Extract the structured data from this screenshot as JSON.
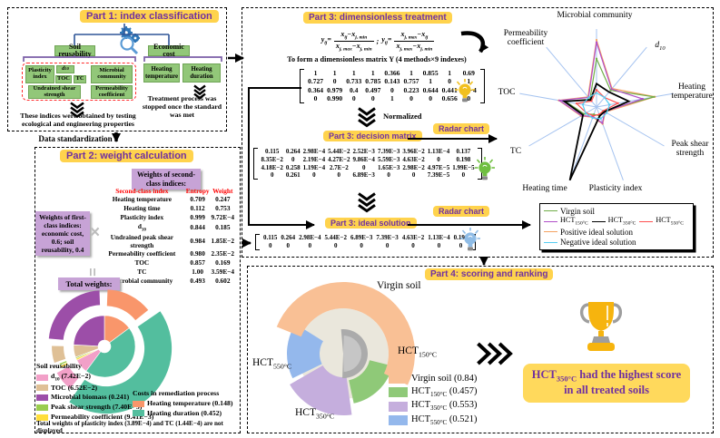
{
  "part1": {
    "title": "Part 1: index classification",
    "branch_left": "Soil reusability",
    "branch_right": "Economic cost",
    "indices": {
      "plasticity_index": "Plasticity index",
      "d10": "d[10]",
      "toc": "TOC",
      "tc": "TC",
      "microbial_community": "Microbial community",
      "undrained_shear_strength": "Undrained shear strength",
      "permeability_coefficient": "Permeability coefficient"
    },
    "cost_indices": {
      "heating_temperature": "Heating temperature",
      "heating_duration": "Heating duration"
    },
    "note_indices": "These indices were obtained by testing ecological and engineering properties",
    "note_cost": "Treatment process was stopped once the standard was met",
    "data_standardization": "Data standardization"
  },
  "part2": {
    "title": "Part 2: weight calculation",
    "second_class_label": "Weights of second-class indices:",
    "first_class_label": "Weights of first-class indices: economic cost, 0.6; soil reusability, 0.4",
    "times_symbol": "×",
    "equals_symbol": "=",
    "total_weights_label": "Total weights:",
    "table": {
      "headers": [
        "Second-class index",
        "Entropy",
        "Weight"
      ],
      "rows": [
        [
          "Heating temperature",
          "0.709",
          "0.247"
        ],
        [
          "Heating time",
          "0.112",
          "0.753"
        ],
        [
          "Plasticity index",
          "0.999",
          "9.72E−4"
        ],
        [
          "d[10]",
          "0.844",
          "0.185"
        ],
        [
          "Undrained peak shear strength",
          "0.984",
          "1.85E−2"
        ],
        [
          "Permeability coefficient",
          "0.980",
          "2.35E−2"
        ],
        [
          "TOC",
          "0.857",
          "0.169"
        ],
        [
          "TC",
          "1.00",
          "3.59E−4"
        ],
        [
          "Microbial community",
          "0.493",
          "0.602"
        ]
      ]
    },
    "legend": {
      "group1_title": "Soil reusability",
      "group1_items": [
        "d[10] (7.42E−2)",
        "TOC (6.52E−2)",
        "Microbial biomass (0.241)",
        "Peak shear strength (7.40E−3)",
        "Permeability coefficient (9.41E−3)"
      ],
      "group1_color_index": [
        2,
        5,
        6,
        4,
        3
      ],
      "group2_title": "Costs in remediation process",
      "group2_items": [
        "Heating temperature (0.148)",
        "Heating duration (0.452)"
      ],
      "group2_color_index": [
        0,
        1
      ],
      "note": "Total weights of plasticity index (3.89E−4) and TC (1.44E−4) are not displayed"
    }
  },
  "part3": {
    "title_dimensionless": "Part 3: dimensionless treatment",
    "title_decision": "Part 3: decision matrix",
    "title_ideal": "Part 3: ideal solution",
    "radar_button": "Radar chart",
    "formula": {
      "lhs": "y[ij]=",
      "frac1_num": "x[ij]−x[j, min]",
      "frac1_den": "x[j, max]−x[j, min]",
      "separator": ";",
      "lhs2": "y[ij]=",
      "frac2_num": "x[j, max]−x[ij]",
      "frac2_den": "x[j, max]−x[j, min]"
    },
    "matrix_caption": "To form  a dimensionless matrix Y (4 methods×9 indexes)",
    "normalized_label": "Normalized",
    "dimensionless_matrix": [
      [
        "1",
        "1",
        "1",
        "1",
        "0.366",
        "1",
        "0.855",
        "1",
        "0.69"
      ],
      [
        "0.727",
        "0",
        "0.733",
        "0.785",
        "0.143",
        "0.757",
        "1",
        "0",
        "1"
      ],
      [
        "0.364",
        "0.979",
        "0.4",
        "0.497",
        "0",
        "0.223",
        "0.644",
        "0.441",
        "1E−4"
      ],
      [
        "0",
        "0.990",
        "0",
        "0",
        "1",
        "0",
        "0",
        "0.656",
        "0"
      ]
    ],
    "decision_matrix": [
      [
        "0.115",
        "0.264",
        "2.98E−4",
        "5.44E−2",
        "2.52E−3",
        "7.39E−3",
        "3.96E−2",
        "1.13E−4",
        "0.137"
      ],
      [
        "8.35E−2",
        "0",
        "2.19E−4",
        "4.27E−2",
        "9.86E−4",
        "5.59E−3",
        "4.63E−2",
        "0",
        "0.198"
      ],
      [
        "4.18E−2",
        "0.258",
        "1.19E−4",
        "2.7E−2",
        "0",
        "1.65E−3",
        "2.98E−2",
        "4.97E−5",
        "1.99E−5"
      ],
      [
        "0",
        "0.261",
        "0",
        "0",
        "6.89E−3",
        "0",
        "0",
        "7.39E−5",
        "0"
      ]
    ],
    "ideal_matrix": [
      [
        "0.115",
        "0.264",
        "2.98E−4",
        "5.44E−2",
        "6.89E−3",
        "7.39E−3",
        "4.63E−2",
        "1.13E−4",
        "0.198"
      ],
      [
        "0",
        "0",
        "0",
        "0",
        "0",
        "0",
        "0",
        "0",
        "0"
      ]
    ],
    "icons": {
      "bulb1": "#F2C01E",
      "bulb2": "#70BF41",
      "bulb3": "#8FBCE6"
    }
  },
  "part4": {
    "title": "Part 4: scoring and ranking",
    "conclusion": "HCT[350°C] had the highest score in all treated soils"
  },
  "chart_data": [
    {
      "type": "pie",
      "variant": "double-ring donut of total weights",
      "title": "Total weights:",
      "segments": [
        {
          "label": "Heating temperature",
          "value": 0.148,
          "color": "#F9966B",
          "group": "Costs in remediation process"
        },
        {
          "label": "Heating duration",
          "value": 0.452,
          "color": "#53BE9E",
          "group": "Costs in remediation process"
        },
        {
          "label": "d10",
          "value": 0.0742,
          "color": "#F2A0C8",
          "group": "Soil reusability"
        },
        {
          "label": "Permeability coefficient",
          "value": 0.00941,
          "color": "#FFDE3B",
          "group": "Soil reusability"
        },
        {
          "label": "Peak shear strength",
          "value": 0.0074,
          "color": "#9ACD4E",
          "group": "Soil reusability"
        },
        {
          "label": "TOC",
          "value": 0.0652,
          "color": "#DFC096",
          "group": "Soil reusability"
        },
        {
          "label": "Microbial biomass",
          "value": 0.241,
          "color": "#9C4EA8",
          "group": "Soil reusability"
        }
      ],
      "hidden_segments_note": "Total weights of plasticity index (3.89E−4) and TC (1.44E−4) are not displayed"
    },
    {
      "type": "radar",
      "axes": [
        "Microbial community",
        "d[10]",
        "Heating temperature",
        "Peak shear strength",
        "Plasticity index",
        "Heating time",
        "TC",
        "TOC",
        "Permeability coefficient"
      ],
      "range": [
        0,
        1
      ],
      "series": [
        {
          "name": "Virgin soil",
          "color": "#70AD47",
          "values": [
            0.62,
            0.28,
            0.75,
            0.1,
            0.12,
            0.1,
            0.18,
            0.4,
            0.13
          ]
        },
        {
          "name": "HCT[150°C]",
          "color": "#B14FC9",
          "values": [
            0.83,
            0.3,
            0.6,
            0.12,
            0.22,
            0.13,
            0.22,
            0.48,
            0.16
          ]
        },
        {
          "name": "HCT[350°C]",
          "color": "#000000",
          "values": [
            0.3,
            0.25,
            0.42,
            0.12,
            0.12,
            1.0,
            0.2,
            0.42,
            0.12
          ]
        },
        {
          "name": "HCT[550°C]",
          "color": "#FF5050",
          "values": [
            0.22,
            0.16,
            0.28,
            0.1,
            0.1,
            0.12,
            0.15,
            0.26,
            0.1
          ]
        },
        {
          "name": "Positive ideal solution",
          "color": "#F4A261",
          "values": [
            0.86,
            0.31,
            0.76,
            0.13,
            0.23,
            0.14,
            0.23,
            0.49,
            0.17
          ]
        },
        {
          "name": "Negative ideal solution",
          "color": "#56CCF2",
          "values": [
            0.18,
            0.16,
            0.17,
            0.15,
            0.16,
            0.15,
            0.16,
            0.18,
            0.16
          ]
        }
      ],
      "legend_rows": [
        [
          0
        ],
        [
          1,
          2,
          3
        ],
        [
          4
        ],
        [
          5
        ]
      ]
    },
    {
      "type": "pie",
      "variant": "nightingale rose of final scores",
      "segments": [
        {
          "label": "Virgin soil",
          "value": 0.84,
          "color": "#F9C095",
          "display": "Virgin soil (0.84)"
        },
        {
          "label": "HCT[150°C]",
          "value": 0.457,
          "color": "#8FC978",
          "display": "HCT[150°C] (0.457)"
        },
        {
          "label": "HCT[350°C]",
          "value": 0.553,
          "color": "#C5AEDD",
          "display": "HCT[350°C] (0.553)"
        },
        {
          "label": "HCT[550°C]",
          "value": 0.521,
          "color": "#94B8EC",
          "display": "HCT[550°C] (0.521)"
        }
      ],
      "ranking": [
        "Virgin soil",
        "HCT350°C",
        "HCT550°C",
        "HCT150°C"
      ]
    }
  ]
}
